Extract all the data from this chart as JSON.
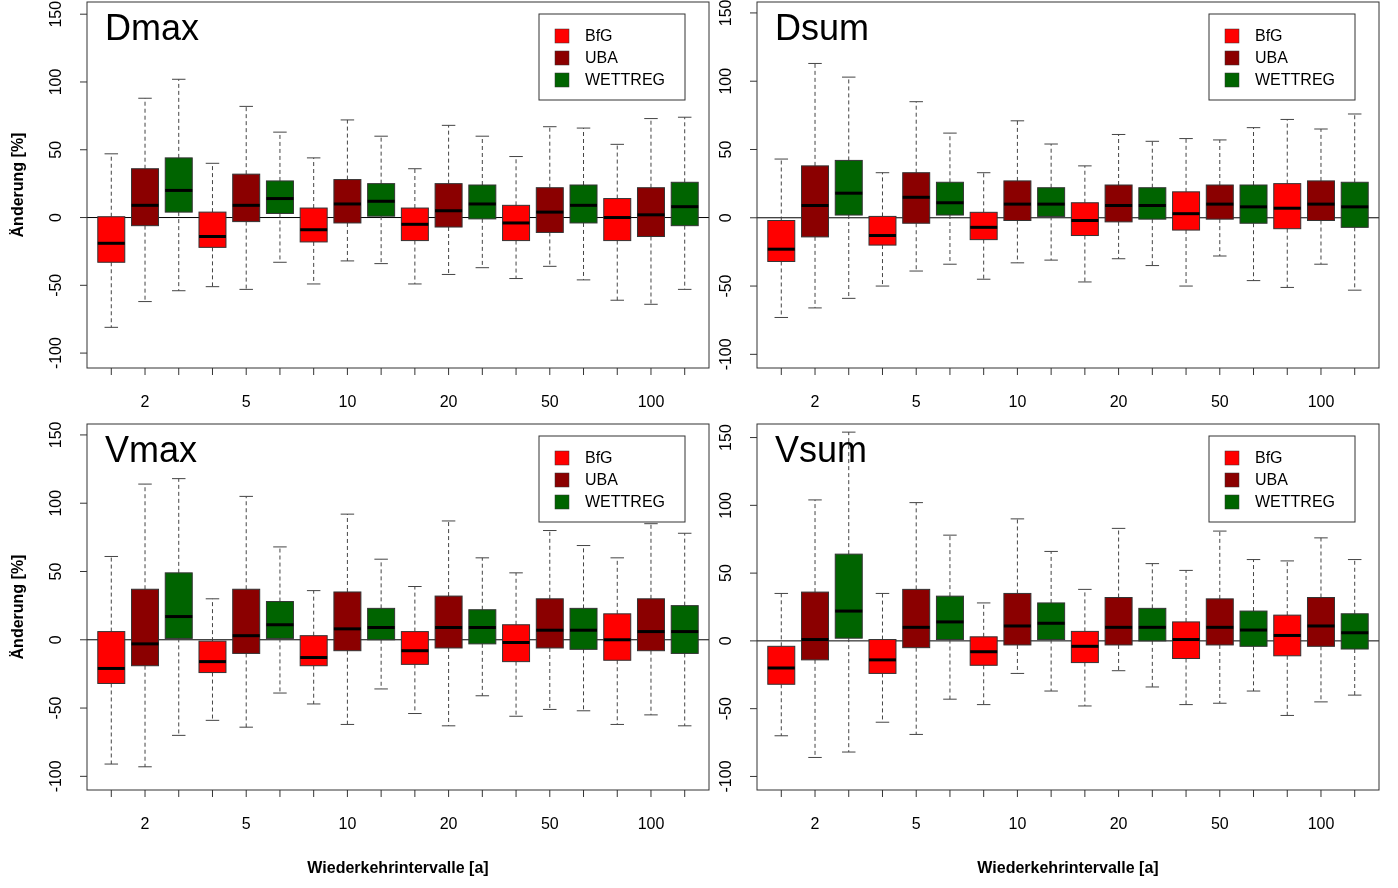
{
  "chart_data": [
    {
      "type": "box",
      "title": "Dmax",
      "ylabel": "Änderung [%]",
      "categories": [
        "2",
        "5",
        "10",
        "20",
        "50",
        "100"
      ],
      "ylim": [
        -111,
        159
      ],
      "yticks": [
        -100,
        -50,
        0,
        50,
        100,
        150
      ],
      "legend": "top right",
      "ref_lines": [
        {
          "axis": "y",
          "value": 0
        }
      ],
      "series": [
        {
          "name": "BfG",
          "color": "#ff0000",
          "boxes": [
            {
              "low": -81,
              "q1": -33,
              "median": -19,
              "q3": 0.6,
              "high": 47
            },
            {
              "low": -51,
              "q1": -22,
              "median": -14,
              "q3": 4,
              "high": 40
            },
            {
              "low": -49,
              "q1": -18,
              "median": -9,
              "q3": 7,
              "high": 44
            },
            {
              "low": -49,
              "q1": -17,
              "median": -5,
              "q3": 7,
              "high": 36
            },
            {
              "low": -45,
              "q1": -17,
              "median": -4,
              "q3": 9,
              "high": 45
            },
            {
              "low": -61,
              "q1": -17,
              "median": 0,
              "q3": 14,
              "high": 54
            }
          ]
        },
        {
          "name": "UBA",
          "color": "#8b0000",
          "boxes": [
            {
              "low": -62,
              "q1": -6,
              "median": 9,
              "q3": 36,
              "high": 88
            },
            {
              "low": -53,
              "q1": -3,
              "median": 9,
              "q3": 32,
              "high": 82
            },
            {
              "low": -32,
              "q1": -4,
              "median": 10,
              "q3": 28,
              "high": 72
            },
            {
              "low": -42,
              "q1": -7,
              "median": 5,
              "q3": 25,
              "high": 68
            },
            {
              "low": -36,
              "q1": -11,
              "median": 4,
              "q3": 22,
              "high": 67
            },
            {
              "low": -64,
              "q1": -14,
              "median": 2,
              "q3": 22,
              "high": 73
            }
          ]
        },
        {
          "name": "WETTREG",
          "color": "#006400",
          "boxes": [
            {
              "low": -54,
              "q1": 4,
              "median": 20,
              "q3": 44,
              "high": 102
            },
            {
              "low": -33,
              "q1": 3,
              "median": 14,
              "q3": 27,
              "high": 63
            },
            {
              "low": -34,
              "q1": 1,
              "median": 12,
              "q3": 25,
              "high": 60
            },
            {
              "low": -37,
              "q1": -1,
              "median": 10,
              "q3": 24,
              "high": 60
            },
            {
              "low": -46,
              "q1": -4,
              "median": 9,
              "q3": 24,
              "high": 66
            },
            {
              "low": -53,
              "q1": -6,
              "median": 8,
              "q3": 26,
              "high": 74
            }
          ]
        }
      ]
    },
    {
      "type": "box",
      "title": "Dsum",
      "categories": [
        "2",
        "5",
        "10",
        "20",
        "50",
        "100"
      ],
      "ylim": [
        -110,
        158
      ],
      "yticks": [
        -100,
        -50,
        0,
        50,
        100,
        150
      ],
      "legend": "top right",
      "ref_lines": [
        {
          "axis": "y",
          "value": 0
        }
      ],
      "series": [
        {
          "name": "BfG",
          "color": "#ff0000",
          "boxes": [
            {
              "low": -73,
              "q1": -32,
              "median": -23,
              "q3": -2,
              "high": 43
            },
            {
              "low": -50,
              "q1": -20,
              "median": -13,
              "q3": 1,
              "high": 33
            },
            {
              "low": -45,
              "q1": -16,
              "median": -7,
              "q3": 4,
              "high": 33
            },
            {
              "low": -47,
              "q1": -13,
              "median": -2,
              "q3": 11,
              "high": 38
            },
            {
              "low": -50,
              "q1": -9,
              "median": 3,
              "q3": 19,
              "high": 58
            },
            {
              "low": -51,
              "q1": -8,
              "median": 7,
              "q3": 25,
              "high": 72
            }
          ]
        },
        {
          "name": "UBA",
          "color": "#8b0000",
          "boxes": [
            {
              "low": -66,
              "q1": -14,
              "median": 9,
              "q3": 38,
              "high": 113
            },
            {
              "low": -39,
              "q1": -4,
              "median": 15,
              "q3": 33,
              "high": 85
            },
            {
              "low": -33,
              "q1": -2,
              "median": 10,
              "q3": 27,
              "high": 71
            },
            {
              "low": -30,
              "q1": -3,
              "median": 9,
              "q3": 24,
              "high": 61
            },
            {
              "low": -28,
              "q1": -1,
              "median": 10,
              "q3": 24,
              "high": 57
            },
            {
              "low": -34,
              "q1": -2,
              "median": 10,
              "q3": 27,
              "high": 65
            }
          ]
        },
        {
          "name": "WETTREG",
          "color": "#006400",
          "boxes": [
            {
              "low": -59,
              "q1": 2,
              "median": 18,
              "q3": 42,
              "high": 103
            },
            {
              "low": -34,
              "q1": 2,
              "median": 11,
              "q3": 26,
              "high": 62
            },
            {
              "low": -31,
              "q1": 1,
              "median": 10,
              "q3": 22,
              "high": 54
            },
            {
              "low": -35,
              "q1": -1,
              "median": 9,
              "q3": 22,
              "high": 56
            },
            {
              "low": -46,
              "q1": -4,
              "median": 8,
              "q3": 24,
              "high": 66
            },
            {
              "low": -53,
              "q1": -7,
              "median": 8,
              "q3": 26,
              "high": 76
            }
          ]
        }
      ]
    },
    {
      "type": "box",
      "title": "Vmax",
      "xlabel": "Wiederkehrintervalle [a]",
      "ylabel": "Änderung [%]",
      "categories": [
        "2",
        "5",
        "10",
        "20",
        "50",
        "100"
      ],
      "ylim": [
        -110,
        158
      ],
      "yticks": [
        -100,
        -50,
        0,
        50,
        100,
        150
      ],
      "legend": "top right",
      "ref_lines": [
        {
          "axis": "y",
          "value": 0
        }
      ],
      "series": [
        {
          "name": "BfG",
          "color": "#ff0000",
          "boxes": [
            {
              "low": -91,
              "q1": -32,
              "median": -21,
              "q3": 6,
              "high": 61
            },
            {
              "low": -59,
              "q1": -24,
              "median": -16,
              "q3": -1,
              "high": 30
            },
            {
              "low": -47,
              "q1": -19,
              "median": -13,
              "q3": 3,
              "high": 36
            },
            {
              "low": -54,
              "q1": -18,
              "median": -8,
              "q3": 6,
              "high": 39
            },
            {
              "low": -56,
              "q1": -16,
              "median": -2,
              "q3": 11,
              "high": 49
            },
            {
              "low": -62,
              "q1": -15,
              "median": 0,
              "q3": 19,
              "high": 60
            }
          ]
        },
        {
          "name": "UBA",
          "color": "#8b0000",
          "boxes": [
            {
              "low": -93,
              "q1": -19,
              "median": -3,
              "q3": 37,
              "high": 114
            },
            {
              "low": -64,
              "q1": -10,
              "median": 3,
              "q3": 37,
              "high": 105
            },
            {
              "low": -62,
              "q1": -8,
              "median": 8,
              "q3": 35,
              "high": 92
            },
            {
              "low": -63,
              "q1": -6,
              "median": 9,
              "q3": 32,
              "high": 87
            },
            {
              "low": -51,
              "q1": -6,
              "median": 7,
              "q3": 30,
              "high": 80
            },
            {
              "low": -55,
              "q1": -8,
              "median": 6,
              "q3": 30,
              "high": 85
            }
          ]
        },
        {
          "name": "WETTREG",
          "color": "#006400",
          "boxes": [
            {
              "low": -70,
              "q1": 1,
              "median": 17,
              "q3": 49,
              "high": 118
            },
            {
              "low": -39,
              "q1": 1,
              "median": 11,
              "q3": 28,
              "high": 68
            },
            {
              "low": -36,
              "q1": 0,
              "median": 9,
              "q3": 23,
              "high": 59
            },
            {
              "low": -41,
              "q1": -3,
              "median": 9,
              "q3": 22,
              "high": 60
            },
            {
              "low": -52,
              "q1": -7,
              "median": 7,
              "q3": 23,
              "high": 69
            },
            {
              "low": -63,
              "q1": -10,
              "median": 6,
              "q3": 25,
              "high": 78
            }
          ]
        }
      ]
    },
    {
      "type": "box",
      "title": "Vsum",
      "xlabel": "Wiederkehrintervalle [a]",
      "categories": [
        "2",
        "5",
        "10",
        "20",
        "50",
        "100"
      ],
      "ylim": [
        -110,
        160
      ],
      "yticks": [
        -100,
        -50,
        0,
        50,
        100,
        150
      ],
      "legend": "top right",
      "ref_lines": [
        {
          "axis": "y",
          "value": 0
        }
      ],
      "series": [
        {
          "name": "BfG",
          "color": "#ff0000",
          "boxes": [
            {
              "low": -70,
              "q1": -32,
              "median": -20,
              "q3": -4,
              "high": 35
            },
            {
              "low": -60,
              "q1": -24,
              "median": -14,
              "q3": 1,
              "high": 35
            },
            {
              "low": -47,
              "q1": -18,
              "median": -8,
              "q3": 3,
              "high": 28
            },
            {
              "low": -48,
              "q1": -16,
              "median": -4,
              "q3": 7,
              "high": 38
            },
            {
              "low": -47,
              "q1": -13,
              "median": 1,
              "q3": 14,
              "high": 52
            },
            {
              "low": -55,
              "q1": -11,
              "median": 4,
              "q3": 19,
              "high": 59
            }
          ]
        },
        {
          "name": "UBA",
          "color": "#8b0000",
          "boxes": [
            {
              "low": -86,
              "q1": -14,
              "median": 1,
              "q3": 36,
              "high": 104
            },
            {
              "low": -69,
              "q1": -5,
              "median": 10,
              "q3": 38,
              "high": 102
            },
            {
              "low": -24,
              "q1": -3,
              "median": 11,
              "q3": 35,
              "high": 90
            },
            {
              "low": -22,
              "q1": -3,
              "median": 10,
              "q3": 32,
              "high": 83
            },
            {
              "low": -46,
              "q1": -3,
              "median": 10,
              "q3": 31,
              "high": 81
            },
            {
              "low": -45,
              "q1": -4,
              "median": 11,
              "q3": 32,
              "high": 76
            }
          ]
        },
        {
          "name": "WETTREG",
          "color": "#006400",
          "boxes": [
            {
              "low": -82,
              "q1": 2,
              "median": 22,
              "q3": 64,
              "high": 154
            },
            {
              "low": -43,
              "q1": 1,
              "median": 14,
              "q3": 33,
              "high": 78
            },
            {
              "low": -37,
              "q1": 1,
              "median": 13,
              "q3": 28,
              "high": 66
            },
            {
              "low": -34,
              "q1": 0,
              "median": 10,
              "q3": 24,
              "high": 57
            },
            {
              "low": -37,
              "q1": -4,
              "median": 8,
              "q3": 22,
              "high": 60
            },
            {
              "low": -40,
              "q1": -6,
              "median": 6,
              "q3": 20,
              "high": 60
            }
          ]
        }
      ]
    }
  ]
}
